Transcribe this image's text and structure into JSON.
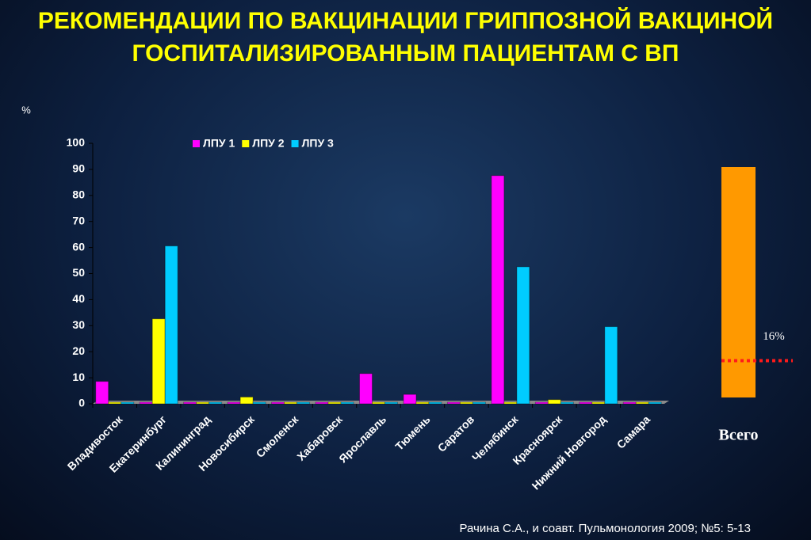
{
  "chart_data": [
    {
      "type": "bar",
      "title": "РЕКОМЕНДАЦИИ ПО ВАКЦИНАЦИИ ГРИППОЗНОЙ ВАКЦИНОЙ ГОСПИТАЛИЗИРОВАННЫМ ПАЦИЕНТАМ С ВП",
      "y_label": "%",
      "source": "Рачина С.А., и соавт. Пульмонология 2009; №5: 5-13",
      "categories": [
        "Владивосток",
        "Екатеринбург",
        "Калининград",
        "Новосибирск",
        "Смоленск",
        "Хабаровск",
        "Ярославль",
        "Тюмень",
        "Саратов",
        "Челябинск",
        "Красноярск",
        "Нижний Новгород",
        "Самара"
      ],
      "series": [
        {
          "name": "ЛПУ 1",
          "color": "#ff00ff",
          "values": [
            8,
            0,
            0,
            0,
            0,
            0,
            11,
            3,
            0,
            87,
            0,
            0,
            0
          ]
        },
        {
          "name": "ЛПУ 2",
          "color": "#ffff00",
          "values": [
            0,
            32,
            0,
            2,
            0,
            0,
            0,
            0,
            0,
            0,
            1,
            0,
            0
          ]
        },
        {
          "name": "ЛПУ 3",
          "color": "#00ccff",
          "values": [
            0,
            60,
            0,
            0,
            0,
            0,
            0,
            0,
            0,
            52,
            0,
            29,
            0
          ]
        }
      ],
      "ylim": [
        0,
        100
      ],
      "yticks": [
        0,
        10,
        20,
        30,
        40,
        50,
        60,
        70,
        80,
        90,
        100
      ]
    },
    {
      "type": "reference",
      "categories": [
        "Всего"
      ],
      "values": [
        16
      ],
      "value_labels": [
        "16%"
      ],
      "ylim": [
        0,
        100
      ],
      "color": "#ff9900",
      "line_color": "#ff1a1a"
    }
  ]
}
